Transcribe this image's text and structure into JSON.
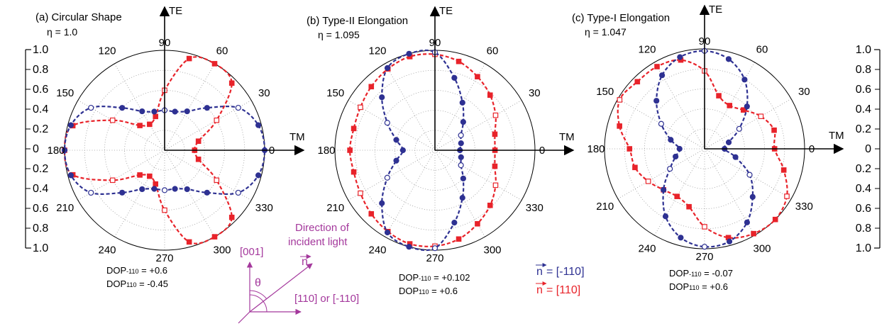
{
  "colors": {
    "red": "#e8232a",
    "blue": "#2e3192",
    "magenta": "#a4389c",
    "black": "#000000"
  },
  "axis_labels": {
    "te": "TE",
    "tm": "TM"
  },
  "angle_labels": [
    "90",
    "60",
    "30",
    "0",
    "330",
    "300",
    "270",
    "240",
    "210",
    "180",
    "150",
    "120"
  ],
  "radial_scale": {
    "left": [
      "1.0",
      "0.8",
      "0.6",
      "0.4",
      "0.2",
      "0",
      "0.2",
      "0.4",
      "0.6",
      "0.8",
      "1.0"
    ],
    "right": [
      "1.0",
      "0.8",
      "0.6",
      "0.4",
      "0.2",
      "0",
      "0.2",
      "0.4",
      "0.6",
      "0.8",
      "1.0"
    ]
  },
  "legend": {
    "blue_label": "= [-110]",
    "red_label": "= [110]",
    "vector_symbol": "n"
  },
  "diagram": {
    "title_line1": "Direction of",
    "title_line2": "incident light",
    "z_label": "[001]",
    "x_label": "[110] or [-110]",
    "theta": "θ",
    "n": "n"
  },
  "chart_data": [
    {
      "type": "polar",
      "panel": "(a)",
      "title": "(a) Circular Shape",
      "eta": "η = 1.0",
      "dop_lines": [
        {
          "prefix": "DOP",
          "sub": "-110",
          "value": " = +0.6"
        },
        {
          "prefix": "DOP",
          "sub": "110",
          "value": " = -0.45"
        }
      ],
      "rlim": [
        0,
        1
      ],
      "theta_step_deg": 15,
      "series": [
        {
          "name": "[110]",
          "color": "#e8232a",
          "marker": "square",
          "r": [
            0.3,
            0.35,
            0.6,
            0.95,
            1.0,
            0.95,
            0.6,
            0.35,
            0.3,
            0.35,
            0.6,
            0.95,
            1.0,
            0.95,
            0.6,
            0.35,
            0.3,
            0.35,
            0.6,
            0.95,
            1.0,
            0.95,
            0.6,
            0.35
          ]
        },
        {
          "name": "[-110]",
          "color": "#2e3192",
          "marker": "circle",
          "r": [
            1.0,
            0.97,
            0.85,
            0.6,
            0.45,
            0.4,
            0.4,
            0.4,
            0.45,
            0.6,
            0.85,
            0.97,
            1.0,
            0.97,
            0.85,
            0.6,
            0.45,
            0.4,
            0.4,
            0.4,
            0.45,
            0.6,
            0.85,
            0.97
          ]
        }
      ]
    },
    {
      "type": "polar",
      "panel": "(b)",
      "title": "(b) Type-II Elongation",
      "eta": "η = 1.095",
      "dop_lines": [
        {
          "prefix": "DOP",
          "sub": "-110",
          "value": " = +0.102"
        },
        {
          "prefix": "DOP",
          "sub": "110",
          "value": " = +0.6"
        }
      ],
      "rlim": [
        0,
        1
      ],
      "theta_step_deg": 15,
      "series": [
        {
          "name": "[110]",
          "color": "#e8232a",
          "marker": "square",
          "r": [
            0.6,
            0.62,
            0.7,
            0.78,
            0.85,
            0.92,
            0.96,
            0.97,
            0.94,
            0.9,
            0.86,
            0.84,
            0.85,
            0.84,
            0.86,
            0.9,
            0.94,
            0.97,
            0.96,
            0.92,
            0.85,
            0.78,
            0.7,
            0.62
          ]
        },
        {
          "name": "[-110]",
          "color": "#2e3192",
          "marker": "circle",
          "r": [
            0.25,
            0.27,
            0.3,
            0.4,
            0.55,
            0.75,
            0.98,
            1.0,
            0.95,
            0.75,
            0.55,
            0.4,
            0.32,
            0.4,
            0.55,
            0.75,
            0.95,
            1.0,
            0.98,
            0.75,
            0.55,
            0.4,
            0.3,
            0.27
          ]
        }
      ]
    },
    {
      "type": "polar",
      "panel": "(c)",
      "title": "(c) Type-I Elongation",
      "eta": "η = 1.047",
      "dop_lines": [
        {
          "prefix": "DOP",
          "sub": "-110",
          "value": " = -0.07"
        },
        {
          "prefix": "DOP",
          "sub": "110",
          "value": " = +0.6"
        }
      ],
      "rlim": [
        0,
        1
      ],
      "theta_step_deg": 15,
      "series": [
        {
          "name": "[110]",
          "color": "#e8232a",
          "marker": "square",
          "r": [
            0.7,
            0.72,
            0.65,
            0.55,
            0.5,
            0.55,
            0.78,
            0.92,
            0.95,
            0.95,
            0.98,
            0.88,
            0.75,
            0.72,
            0.65,
            0.58,
            0.55,
            0.6,
            0.78,
            0.92,
            0.98,
            1.0,
            0.95,
            0.82
          ]
        },
        {
          "name": "[-110]",
          "color": "#2e3192",
          "marker": "circle",
          "r": [
            0.2,
            0.25,
            0.4,
            0.6,
            0.8,
            0.93,
            0.98,
            0.95,
            0.85,
            0.68,
            0.5,
            0.35,
            0.25,
            0.3,
            0.4,
            0.58,
            0.78,
            0.92,
            0.98,
            0.96,
            0.85,
            0.68,
            0.52,
            0.32
          ]
        }
      ]
    }
  ]
}
